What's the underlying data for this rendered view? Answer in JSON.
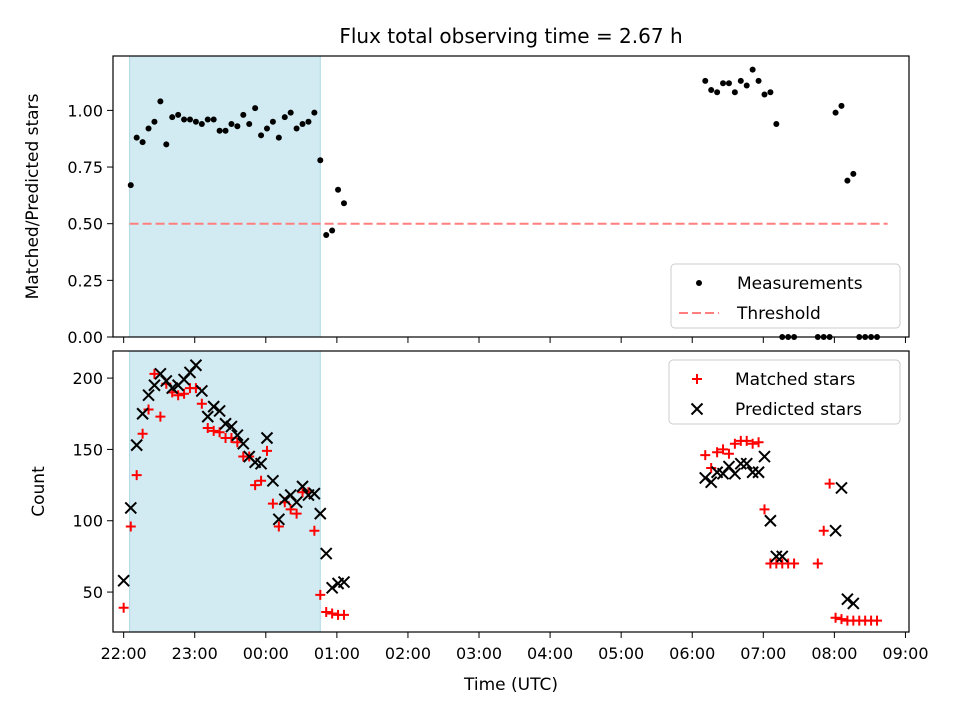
{
  "title": "Flux total observing time = 2.67 h",
  "colors": {
    "shade": "#add8e6",
    "measurement": "#000000",
    "threshold": "#ff7f7f",
    "matched": "#ff0000",
    "predicted": "#000000"
  },
  "chart_data": [
    {
      "type": "scatter",
      "ylabel": "Matched/Predicted stars",
      "ylim": [
        0,
        1.24
      ],
      "yticks": [
        "0.00",
        "0.25",
        "0.50",
        "0.75",
        "1.00"
      ],
      "yticks_values": [
        0,
        0.25,
        0.5,
        0.75,
        1.0
      ],
      "xlim": [
        "21:51",
        "09:03"
      ],
      "shaded_interval": [
        "22:05",
        "00:46"
      ],
      "legend_position": "lower right",
      "series": [
        {
          "name": "Measurements",
          "marker": "dot",
          "x": [
            "22:06",
            "22:11",
            "22:16",
            "22:21",
            "22:26",
            "22:31",
            "22:36",
            "22:41",
            "22:46",
            "22:51",
            "22:56",
            "23:01",
            "23:06",
            "23:11",
            "23:16",
            "23:21",
            "23:26",
            "23:31",
            "23:36",
            "23:41",
            "23:46",
            "23:51",
            "23:56",
            "00:01",
            "00:06",
            "00:11",
            "00:16",
            "00:21",
            "00:26",
            "00:31",
            "00:36",
            "00:41",
            "00:46",
            "00:51",
            "00:56",
            "01:01",
            "01:06",
            "06:11",
            "06:16",
            "06:21",
            "06:26",
            "06:31",
            "06:36",
            "06:41",
            "06:46",
            "06:51",
            "06:56",
            "07:01",
            "07:06",
            "07:11",
            "07:16",
            "07:21",
            "07:26",
            "07:46",
            "07:51",
            "07:56",
            "08:01",
            "08:06",
            "08:11",
            "08:16",
            "08:21",
            "08:26",
            "08:31",
            "08:36"
          ],
          "y": [
            0.67,
            0.88,
            0.86,
            0.92,
            0.95,
            1.04,
            0.85,
            0.97,
            0.98,
            0.96,
            0.96,
            0.95,
            0.94,
            0.96,
            0.96,
            0.91,
            0.91,
            0.94,
            0.93,
            0.98,
            0.94,
            1.01,
            0.89,
            0.92,
            0.95,
            0.88,
            0.97,
            0.99,
            0.92,
            0.94,
            0.95,
            0.99,
            0.78,
            0.45,
            0.47,
            0.65,
            0.59,
            1.13,
            1.09,
            1.08,
            1.12,
            1.12,
            1.08,
            1.13,
            1.11,
            1.18,
            1.13,
            1.07,
            1.08,
            0.94,
            0.0,
            0.0,
            0.0,
            0.0,
            0.0,
            0.0,
            0.99,
            1.02,
            0.69,
            0.72,
            0.0,
            0.0,
            0.0,
            0.0
          ]
        },
        {
          "name": "Threshold",
          "marker": "dashed",
          "x": [
            "22:05",
            "08:45"
          ],
          "y": [
            0.5,
            0.5
          ]
        }
      ]
    },
    {
      "type": "scatter",
      "ylabel": "Count",
      "xlabel": "Time (UTC)",
      "ylim": [
        22,
        219
      ],
      "yticks": [
        "50",
        "100",
        "150",
        "200"
      ],
      "yticks_values": [
        50,
        100,
        150,
        200
      ],
      "xticks": [
        "22:00",
        "23:00",
        "00:00",
        "01:00",
        "02:00",
        "03:00",
        "04:00",
        "05:00",
        "06:00",
        "07:00",
        "08:00",
        "09:00"
      ],
      "xlim": [
        "21:51",
        "09:03"
      ],
      "shaded_interval": [
        "22:05",
        "00:46"
      ],
      "legend_position": "upper right",
      "series": [
        {
          "name": "Matched stars",
          "marker": "plus",
          "x": [
            "22:00",
            "22:06",
            "22:11",
            "22:16",
            "22:21",
            "22:26",
            "22:31",
            "22:36",
            "22:41",
            "22:46",
            "22:51",
            "22:56",
            "23:01",
            "23:06",
            "23:11",
            "23:16",
            "23:21",
            "23:26",
            "23:31",
            "23:36",
            "23:41",
            "23:46",
            "23:51",
            "23:56",
            "00:01",
            "00:06",
            "00:11",
            "00:16",
            "00:21",
            "00:26",
            "00:31",
            "00:36",
            "00:41",
            "00:46",
            "00:51",
            "00:56",
            "01:01",
            "01:06",
            "06:11",
            "06:16",
            "06:21",
            "06:26",
            "06:31",
            "06:36",
            "06:41",
            "06:46",
            "06:51",
            "06:56",
            "07:01",
            "07:06",
            "07:11",
            "07:16",
            "07:21",
            "07:26",
            "07:46",
            "07:51",
            "07:56",
            "08:01",
            "08:06",
            "08:11",
            "08:16",
            "08:21",
            "08:26",
            "08:31",
            "08:36"
          ],
          "y": [
            39,
            96,
            132,
            161,
            178,
            203,
            173,
            196,
            190,
            188,
            189,
            193,
            193,
            182,
            165,
            163,
            162,
            158,
            158,
            155,
            145,
            145,
            125,
            128,
            149,
            112,
            96,
            113,
            108,
            105,
            120,
            120,
            93,
            48,
            36,
            35,
            34,
            34,
            146,
            137,
            148,
            150,
            147,
            154,
            156,
            156,
            154,
            155,
            108,
            70,
            70,
            70,
            70,
            70,
            70,
            93,
            126,
            32,
            31,
            30,
            30,
            30,
            30,
            30,
            30
          ]
        },
        {
          "name": "Predicted stars",
          "marker": "x",
          "x": [
            "22:00",
            "22:06",
            "22:11",
            "22:16",
            "22:21",
            "22:26",
            "22:31",
            "22:36",
            "22:41",
            "22:46",
            "22:51",
            "22:56",
            "23:01",
            "23:06",
            "23:11",
            "23:16",
            "23:21",
            "23:26",
            "23:31",
            "23:36",
            "23:41",
            "23:46",
            "23:51",
            "23:56",
            "00:01",
            "00:06",
            "00:11",
            "00:16",
            "00:21",
            "00:26",
            "00:31",
            "00:36",
            "00:41",
            "00:46",
            "00:51",
            "00:56",
            "01:01",
            "01:06",
            "06:11",
            "06:16",
            "06:21",
            "06:26",
            "06:31",
            "06:36",
            "06:41",
            "06:46",
            "06:51",
            "06:56",
            "07:01",
            "07:06",
            "07:11",
            "07:16",
            "08:01",
            "08:06",
            "08:11",
            "08:16"
          ],
          "y": [
            58,
            109,
            153,
            175,
            188,
            195,
            203,
            198,
            193,
            195,
            199,
            204,
            209,
            191,
            173,
            180,
            177,
            168,
            166,
            160,
            154,
            145,
            141,
            140,
            158,
            128,
            101,
            115,
            118,
            113,
            124,
            118,
            119,
            105,
            77,
            53,
            56,
            57,
            130,
            127,
            134,
            133,
            138,
            133,
            140,
            140,
            134,
            134,
            145,
            100,
            75,
            75,
            93,
            123,
            45,
            42
          ]
        }
      ]
    }
  ]
}
